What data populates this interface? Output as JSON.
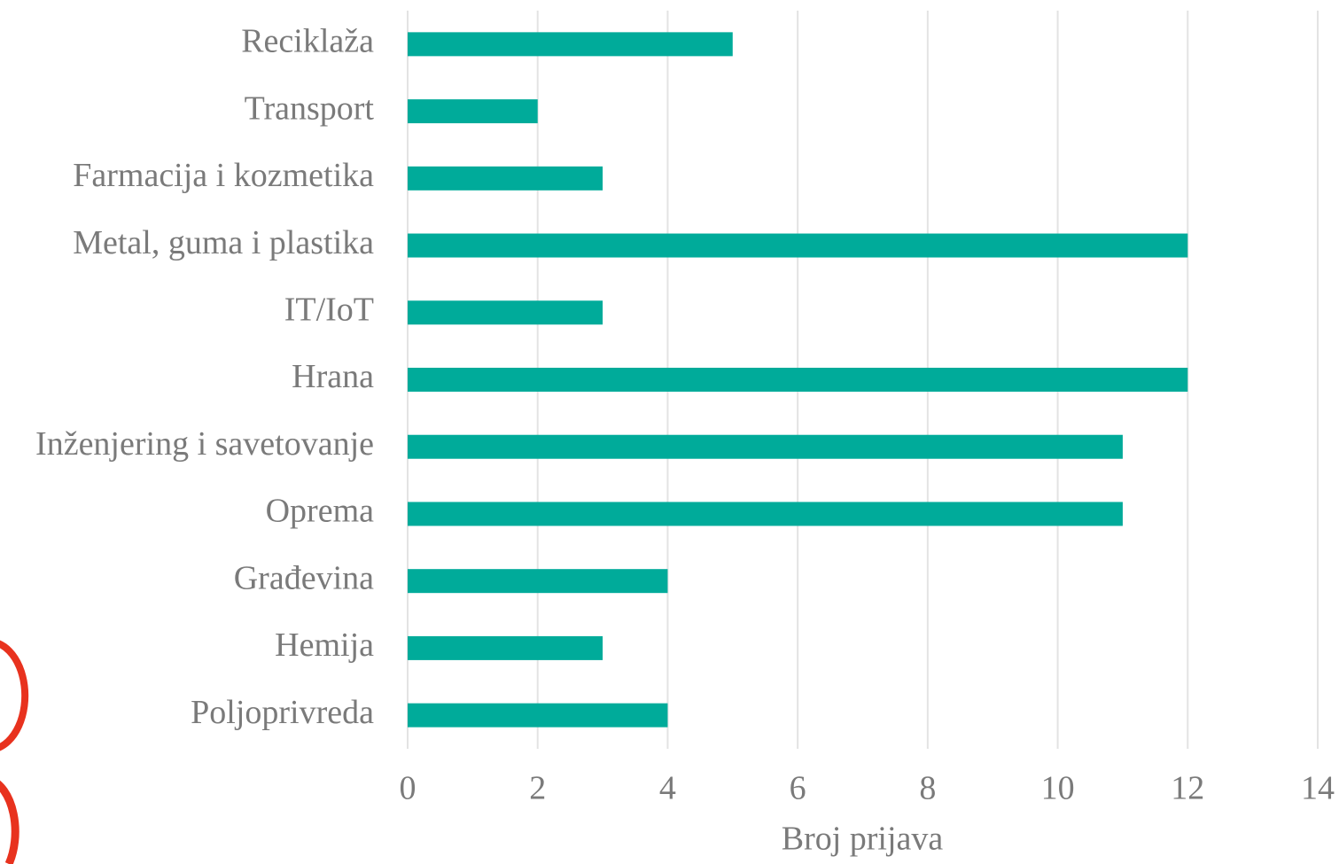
{
  "chart_data": {
    "type": "bar",
    "orientation": "horizontal",
    "categories": [
      "Reciklaža",
      "Transport",
      "Farmacija i kozmetika",
      "Metal, guma i plastika",
      "IT/IoT",
      "Hrana",
      "Inženjering i savetovanje",
      "Oprema",
      "Građevina",
      "Hemija",
      "Poljoprivreda"
    ],
    "values": [
      5,
      2,
      3,
      12,
      3,
      12,
      11,
      11,
      4,
      3,
      4
    ],
    "color": "#00ab9a",
    "xlabel": "Broj prijava",
    "xlim": [
      0,
      14
    ],
    "xticks": [
      0,
      2,
      4,
      6,
      8,
      10,
      12,
      14
    ],
    "grid": true
  }
}
